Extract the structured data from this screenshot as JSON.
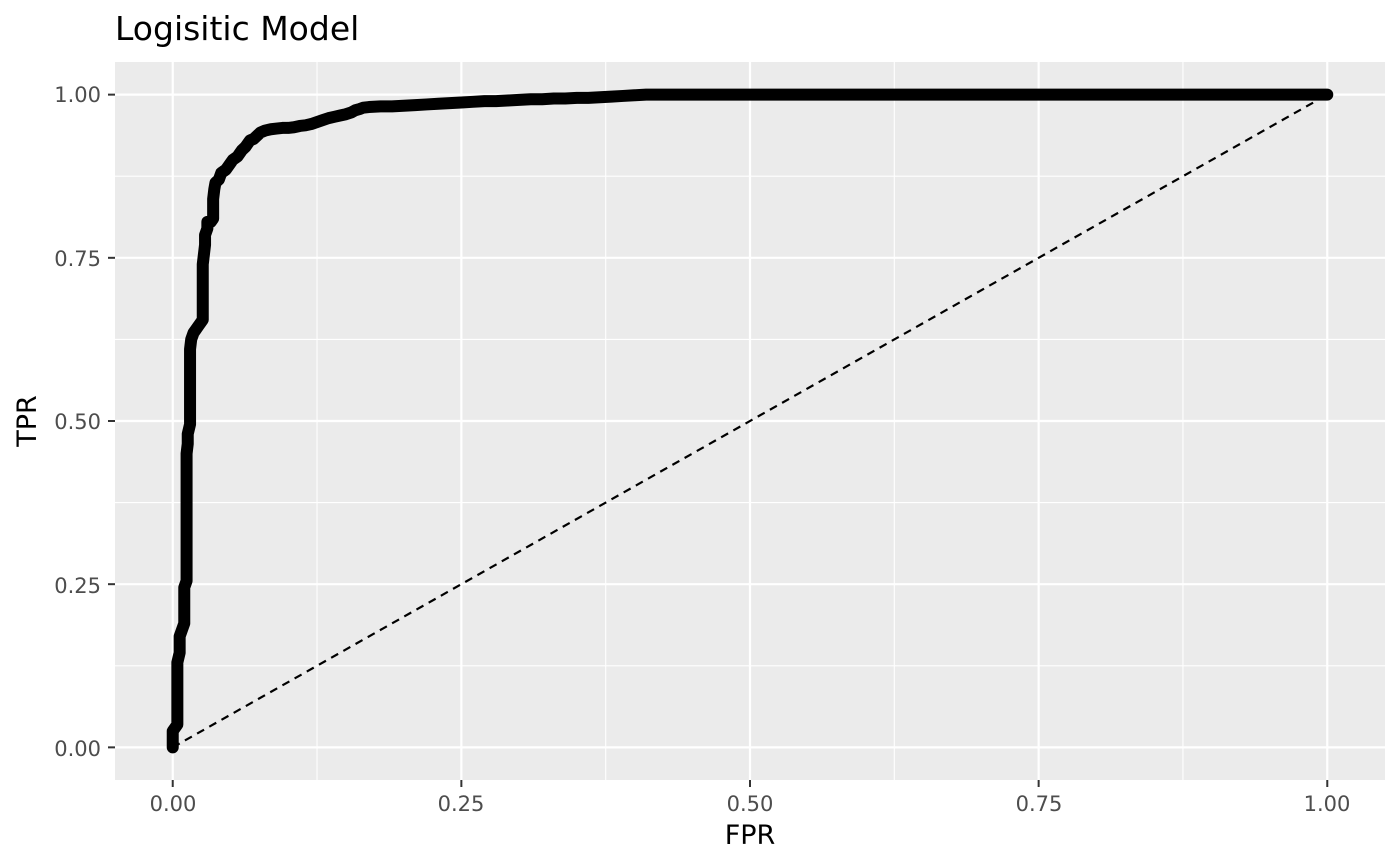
{
  "chart_data": {
    "type": "line",
    "title": "Logisitic Model",
    "xlabel": "FPR",
    "ylabel": "TPR",
    "xlim": [
      -0.05,
      1.05
    ],
    "ylim": [
      -0.05,
      1.05
    ],
    "x_ticks": [
      0.0,
      0.25,
      0.5,
      0.75,
      1.0
    ],
    "x_tick_labels": [
      "0.00",
      "0.25",
      "0.50",
      "0.75",
      "1.00"
    ],
    "y_ticks": [
      0.0,
      0.25,
      0.5,
      0.75,
      1.0
    ],
    "y_tick_labels": [
      "0.00",
      "0.25",
      "0.50",
      "0.75",
      "1.00"
    ],
    "grid": true,
    "background": "#EBEBEB",
    "series": [
      {
        "style": "solid line with points",
        "color": "#000000",
        "points": [
          [
            0.0,
            0.0
          ],
          [
            0.0,
            0.005
          ],
          [
            0.0,
            0.015
          ],
          [
            0.0,
            0.025
          ],
          [
            0.002,
            0.03
          ],
          [
            0.004,
            0.035
          ],
          [
            0.004,
            0.045
          ],
          [
            0.004,
            0.06
          ],
          [
            0.004,
            0.07
          ],
          [
            0.004,
            0.085
          ],
          [
            0.004,
            0.1
          ],
          [
            0.004,
            0.115
          ],
          [
            0.004,
            0.13
          ],
          [
            0.006,
            0.145
          ],
          [
            0.006,
            0.16
          ],
          [
            0.006,
            0.17
          ],
          [
            0.008,
            0.18
          ],
          [
            0.01,
            0.19
          ],
          [
            0.01,
            0.2
          ],
          [
            0.01,
            0.215
          ],
          [
            0.01,
            0.23
          ],
          [
            0.01,
            0.245
          ],
          [
            0.012,
            0.255
          ],
          [
            0.012,
            0.27
          ],
          [
            0.012,
            0.29
          ],
          [
            0.012,
            0.31
          ],
          [
            0.012,
            0.33
          ],
          [
            0.012,
            0.35
          ],
          [
            0.012,
            0.37
          ],
          [
            0.012,
            0.39
          ],
          [
            0.012,
            0.41
          ],
          [
            0.012,
            0.43
          ],
          [
            0.012,
            0.45
          ],
          [
            0.013,
            0.465
          ],
          [
            0.013,
            0.48
          ],
          [
            0.015,
            0.495
          ],
          [
            0.015,
            0.51
          ],
          [
            0.015,
            0.53
          ],
          [
            0.015,
            0.55
          ],
          [
            0.015,
            0.57
          ],
          [
            0.015,
            0.59
          ],
          [
            0.015,
            0.61
          ],
          [
            0.016,
            0.625
          ],
          [
            0.018,
            0.635
          ],
          [
            0.02,
            0.64
          ],
          [
            0.022,
            0.645
          ],
          [
            0.024,
            0.65
          ],
          [
            0.026,
            0.655
          ],
          [
            0.026,
            0.665
          ],
          [
            0.026,
            0.68
          ],
          [
            0.026,
            0.7
          ],
          [
            0.026,
            0.72
          ],
          [
            0.026,
            0.74
          ],
          [
            0.027,
            0.755
          ],
          [
            0.028,
            0.77
          ],
          [
            0.028,
            0.785
          ],
          [
            0.03,
            0.795
          ],
          [
            0.03,
            0.805
          ],
          [
            0.033,
            0.805
          ],
          [
            0.035,
            0.81
          ],
          [
            0.035,
            0.825
          ],
          [
            0.035,
            0.84
          ],
          [
            0.036,
            0.855
          ],
          [
            0.037,
            0.865
          ],
          [
            0.04,
            0.87
          ],
          [
            0.042,
            0.88
          ],
          [
            0.046,
            0.885
          ],
          [
            0.048,
            0.89
          ],
          [
            0.05,
            0.895
          ],
          [
            0.052,
            0.9
          ],
          [
            0.056,
            0.905
          ],
          [
            0.058,
            0.91
          ],
          [
            0.06,
            0.915
          ],
          [
            0.063,
            0.92
          ],
          [
            0.065,
            0.925
          ],
          [
            0.067,
            0.93
          ],
          [
            0.07,
            0.932
          ],
          [
            0.073,
            0.937
          ],
          [
            0.076,
            0.942
          ],
          [
            0.08,
            0.945
          ],
          [
            0.085,
            0.947
          ],
          [
            0.09,
            0.948
          ],
          [
            0.095,
            0.949
          ],
          [
            0.1,
            0.949
          ],
          [
            0.105,
            0.95
          ],
          [
            0.11,
            0.952
          ],
          [
            0.115,
            0.953
          ],
          [
            0.12,
            0.955
          ],
          [
            0.125,
            0.958
          ],
          [
            0.13,
            0.961
          ],
          [
            0.135,
            0.964
          ],
          [
            0.14,
            0.966
          ],
          [
            0.145,
            0.968
          ],
          [
            0.15,
            0.97
          ],
          [
            0.155,
            0.973
          ],
          [
            0.158,
            0.976
          ],
          [
            0.162,
            0.978
          ],
          [
            0.165,
            0.98
          ],
          [
            0.17,
            0.981
          ],
          [
            0.18,
            0.982
          ],
          [
            0.19,
            0.982
          ],
          [
            0.2,
            0.983
          ],
          [
            0.21,
            0.984
          ],
          [
            0.22,
            0.985
          ],
          [
            0.23,
            0.986
          ],
          [
            0.24,
            0.987
          ],
          [
            0.25,
            0.988
          ],
          [
            0.26,
            0.989
          ],
          [
            0.27,
            0.99
          ],
          [
            0.28,
            0.99
          ],
          [
            0.29,
            0.991
          ],
          [
            0.3,
            0.992
          ],
          [
            0.31,
            0.993
          ],
          [
            0.32,
            0.993
          ],
          [
            0.33,
            0.994
          ],
          [
            0.34,
            0.994
          ],
          [
            0.35,
            0.995
          ],
          [
            0.36,
            0.995
          ],
          [
            0.37,
            0.996
          ],
          [
            0.38,
            0.997
          ],
          [
            0.39,
            0.998
          ],
          [
            0.4,
            0.999
          ],
          [
            0.41,
            1.0
          ],
          [
            0.42,
            1.0
          ],
          [
            0.45,
            1.0
          ],
          [
            0.5,
            1.0
          ],
          [
            0.55,
            1.0
          ],
          [
            0.6,
            1.0
          ],
          [
            0.65,
            1.0
          ],
          [
            0.7,
            1.0
          ],
          [
            0.75,
            1.0
          ],
          [
            0.8,
            1.0
          ],
          [
            0.85,
            1.0
          ],
          [
            1.0,
            1.0
          ]
        ]
      },
      {
        "style": "dashed reference line",
        "color": "#000000",
        "points": [
          [
            0.0,
            0.0
          ],
          [
            1.0,
            1.0
          ]
        ]
      }
    ]
  }
}
